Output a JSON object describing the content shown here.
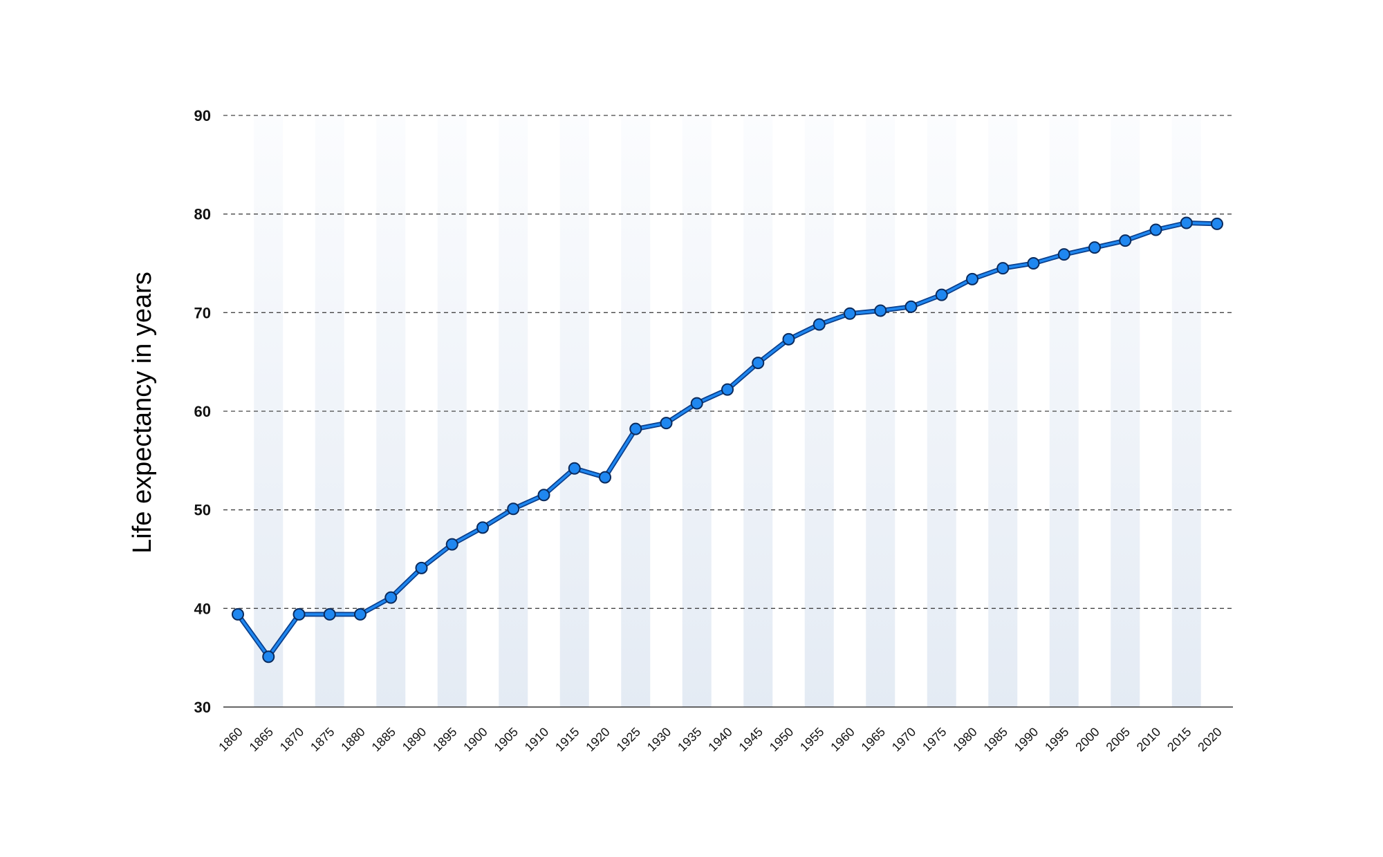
{
  "chart_data": {
    "type": "line",
    "title": "",
    "xlabel": "",
    "ylabel": "Life expectancy in years",
    "ylim": [
      30,
      90
    ],
    "yticks": [
      30,
      40,
      50,
      60,
      70,
      80,
      90
    ],
    "grid": true,
    "legend": "none",
    "categories": [
      "1860",
      "1865",
      "1870",
      "1875",
      "1880",
      "1885",
      "1890",
      "1895",
      "1900",
      "1905",
      "1910",
      "1915",
      "1920",
      "1925",
      "1930",
      "1935",
      "1940",
      "1945",
      "1950",
      "1955",
      "1960",
      "1965",
      "1970",
      "1975",
      "1980",
      "1985",
      "1990",
      "1995",
      "2000",
      "2005",
      "2010",
      "2015",
      "2020"
    ],
    "values": [
      39.4,
      35.1,
      39.4,
      39.4,
      39.4,
      41.1,
      44.1,
      46.5,
      48.2,
      50.1,
      51.5,
      54.2,
      53.3,
      58.2,
      58.8,
      60.8,
      62.2,
      64.9,
      67.3,
      68.8,
      69.9,
      70.2,
      70.6,
      71.8,
      73.4,
      74.5,
      75.0,
      75.9,
      76.6,
      77.3,
      78.4,
      79.1,
      79.0
    ],
    "colors": {
      "line_stroke": "#0a3f8c",
      "line_fill": "#1f87f0",
      "marker_fill": "#1f87f0",
      "marker_stroke": "#0a2a5c",
      "band_top": "#fbfcfe",
      "band_bottom": "#e4ebf4"
    }
  }
}
